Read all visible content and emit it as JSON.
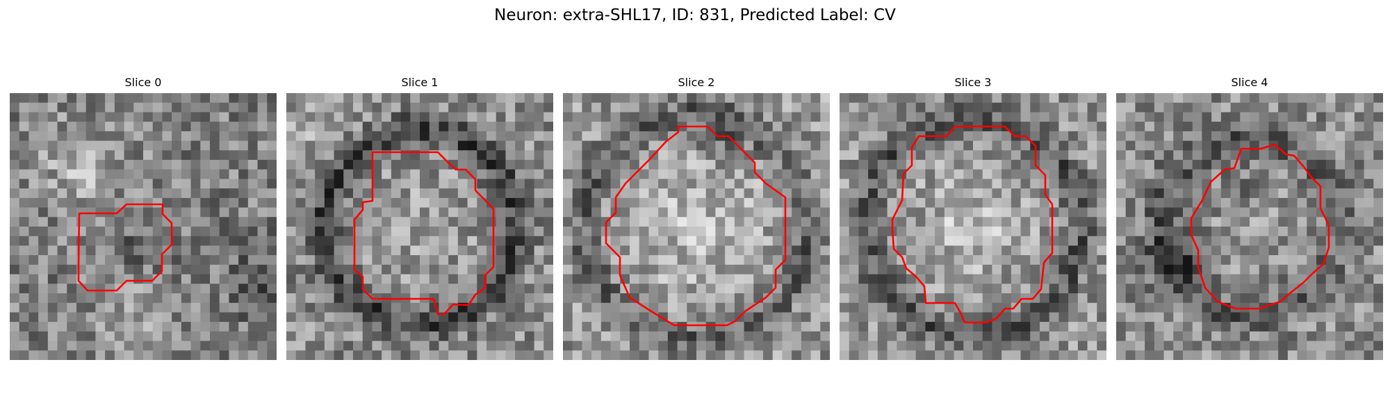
{
  "figure": {
    "title": "Neuron: extra-SHL17, ID: 831, Predicted Label: CV"
  },
  "colors": {
    "contour": "#ff0000",
    "background": "#ffffff"
  },
  "slices": [
    {
      "title": "Slice 0",
      "image_description": "noisy grayscale micrograph patch"
    },
    {
      "title": "Slice 1",
      "image_description": "noisy grayscale micrograph patch"
    },
    {
      "title": "Slice 2",
      "image_description": "noisy grayscale micrograph patch"
    },
    {
      "title": "Slice 3",
      "image_description": "noisy grayscale micrograph patch"
    },
    {
      "title": "Slice 4",
      "image_description": "noisy grayscale micrograph patch"
    }
  ]
}
